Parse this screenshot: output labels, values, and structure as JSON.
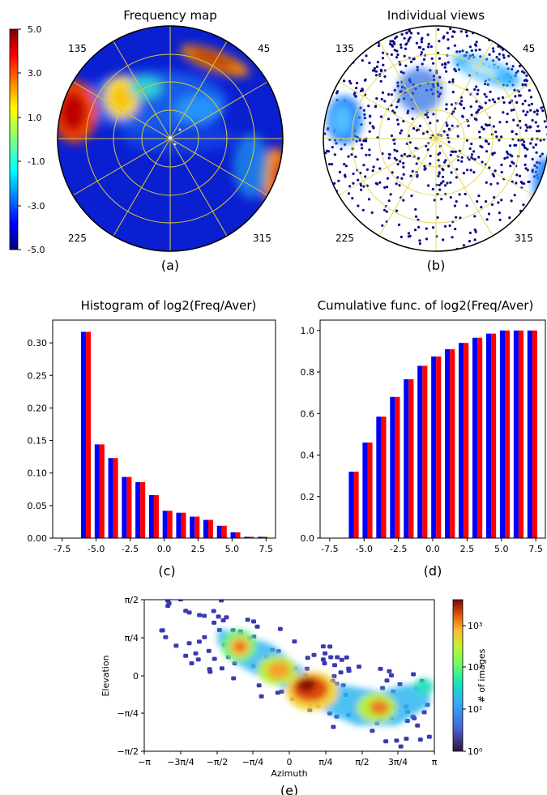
{
  "panels": {
    "a": {
      "title": "Frequency map",
      "label": "(a)",
      "colorbar_ticks": [
        "5.0",
        "3.0",
        "1.0",
        "-1.0",
        "-3.0",
        "-5.0"
      ],
      "quadrants": [
        "135",
        "45",
        "225",
        "315"
      ]
    },
    "b": {
      "title": "Individual views",
      "label": "(b)",
      "quadrants": [
        "135",
        "45",
        "225",
        "315"
      ]
    },
    "c": {
      "label": "(c)"
    },
    "d": {
      "label": "(d)"
    },
    "e": {
      "label": "(e)"
    }
  },
  "chart_data": [
    {
      "type": "heatmap",
      "title": "Frequency map",
      "projection": "polar",
      "colorscale": "jet",
      "zlim": [
        -5.0,
        5.0
      ],
      "colorbar_ticks": [
        5.0,
        3.0,
        1.0,
        -1.0,
        -3.0,
        -5.0
      ],
      "angle_labels": [
        "135",
        "45",
        "225",
        "315"
      ]
    },
    {
      "type": "scatter",
      "title": "Individual views",
      "projection": "polar",
      "angle_labels": [
        "135",
        "45",
        "225",
        "315"
      ]
    },
    {
      "type": "bar",
      "title": "Histogram of log2(Freq/Aver)",
      "x": [
        -6.75,
        -5.75,
        -4.75,
        -3.75,
        -2.75,
        -1.75,
        -0.75,
        0.25,
        1.25,
        2.25,
        3.25,
        4.25,
        5.25,
        6.25,
        7.25
      ],
      "series": [
        {
          "color": "#0000ff",
          "values": [
            0.0,
            0.317,
            0.144,
            0.123,
            0.094,
            0.086,
            0.066,
            0.042,
            0.039,
            0.033,
            0.028,
            0.019,
            0.009,
            0.002,
            0.002
          ]
        },
        {
          "color": "#ff0000",
          "values": [
            0.0,
            0.317,
            0.144,
            0.123,
            0.094,
            0.086,
            0.066,
            0.042,
            0.039,
            0.033,
            0.028,
            0.019,
            0.009,
            0.002,
            0.002
          ]
        }
      ],
      "xlim": [
        -8.2,
        8.2
      ],
      "ylim": [
        0,
        0.335
      ],
      "xticks": [
        -7.5,
        -5.0,
        -2.5,
        0.0,
        2.5,
        5.0,
        7.5
      ],
      "xtick_labels": [
        "-7.5",
        "-5.0",
        "-2.5",
        "0.0",
        "2.5",
        "5.0",
        "7.5"
      ],
      "yticks": [
        0.0,
        0.05,
        0.1,
        0.15,
        0.2,
        0.25,
        0.3
      ],
      "ytick_labels": [
        "0.00",
        "0.05",
        "0.10",
        "0.15",
        "0.20",
        "0.25",
        "0.30"
      ]
    },
    {
      "type": "bar",
      "title": "Cumulative func. of log2(Freq/Aver)",
      "x": [
        -6.75,
        -5.75,
        -4.75,
        -3.75,
        -2.75,
        -1.75,
        -0.75,
        0.25,
        1.25,
        2.25,
        3.25,
        4.25,
        5.25,
        6.25,
        7.25
      ],
      "series": [
        {
          "color": "#0000ff",
          "values": [
            0.0,
            0.32,
            0.46,
            0.585,
            0.68,
            0.765,
            0.83,
            0.875,
            0.91,
            0.94,
            0.965,
            0.985,
            1.0,
            1.0,
            1.0
          ]
        },
        {
          "color": "#ff0000",
          "values": [
            0.0,
            0.32,
            0.46,
            0.585,
            0.68,
            0.765,
            0.83,
            0.875,
            0.91,
            0.94,
            0.965,
            0.985,
            1.0,
            1.0,
            1.0
          ]
        }
      ],
      "xlim": [
        -8.2,
        8.2
      ],
      "ylim": [
        0,
        1.05
      ],
      "xticks": [
        -7.5,
        -5.0,
        -2.5,
        0.0,
        2.5,
        5.0,
        7.5
      ],
      "xtick_labels": [
        "-7.5",
        "-5.0",
        "-2.5",
        "0.0",
        "2.5",
        "5.0",
        "7.5"
      ],
      "yticks": [
        0.0,
        0.2,
        0.4,
        0.6,
        0.8,
        1.0
      ],
      "ytick_labels": [
        "0.0",
        "0.2",
        "0.4",
        "0.6",
        "0.8",
        "1.0"
      ]
    },
    {
      "type": "heatmap",
      "subtype": "hexbin",
      "xlabel": "Azimuth",
      "ylabel": "Elevation",
      "colorbar_label": "# of images",
      "colorscale": "log",
      "xlim_rad": [
        -3.1416,
        3.1416
      ],
      "ylim_rad": [
        -1.5708,
        1.5708
      ],
      "xtick_labels": [
        "−π",
        "−3π/4",
        "−π/2",
        "−π/4",
        "0",
        "π/4",
        "π/2",
        "3π/4",
        "π"
      ],
      "ytick_labels": [
        "π/2",
        "π/4",
        "0",
        "−π/4",
        "−π/2"
      ],
      "colorbar_ticks": [
        "10³",
        "10²",
        "10¹",
        "10⁰"
      ]
    }
  ]
}
